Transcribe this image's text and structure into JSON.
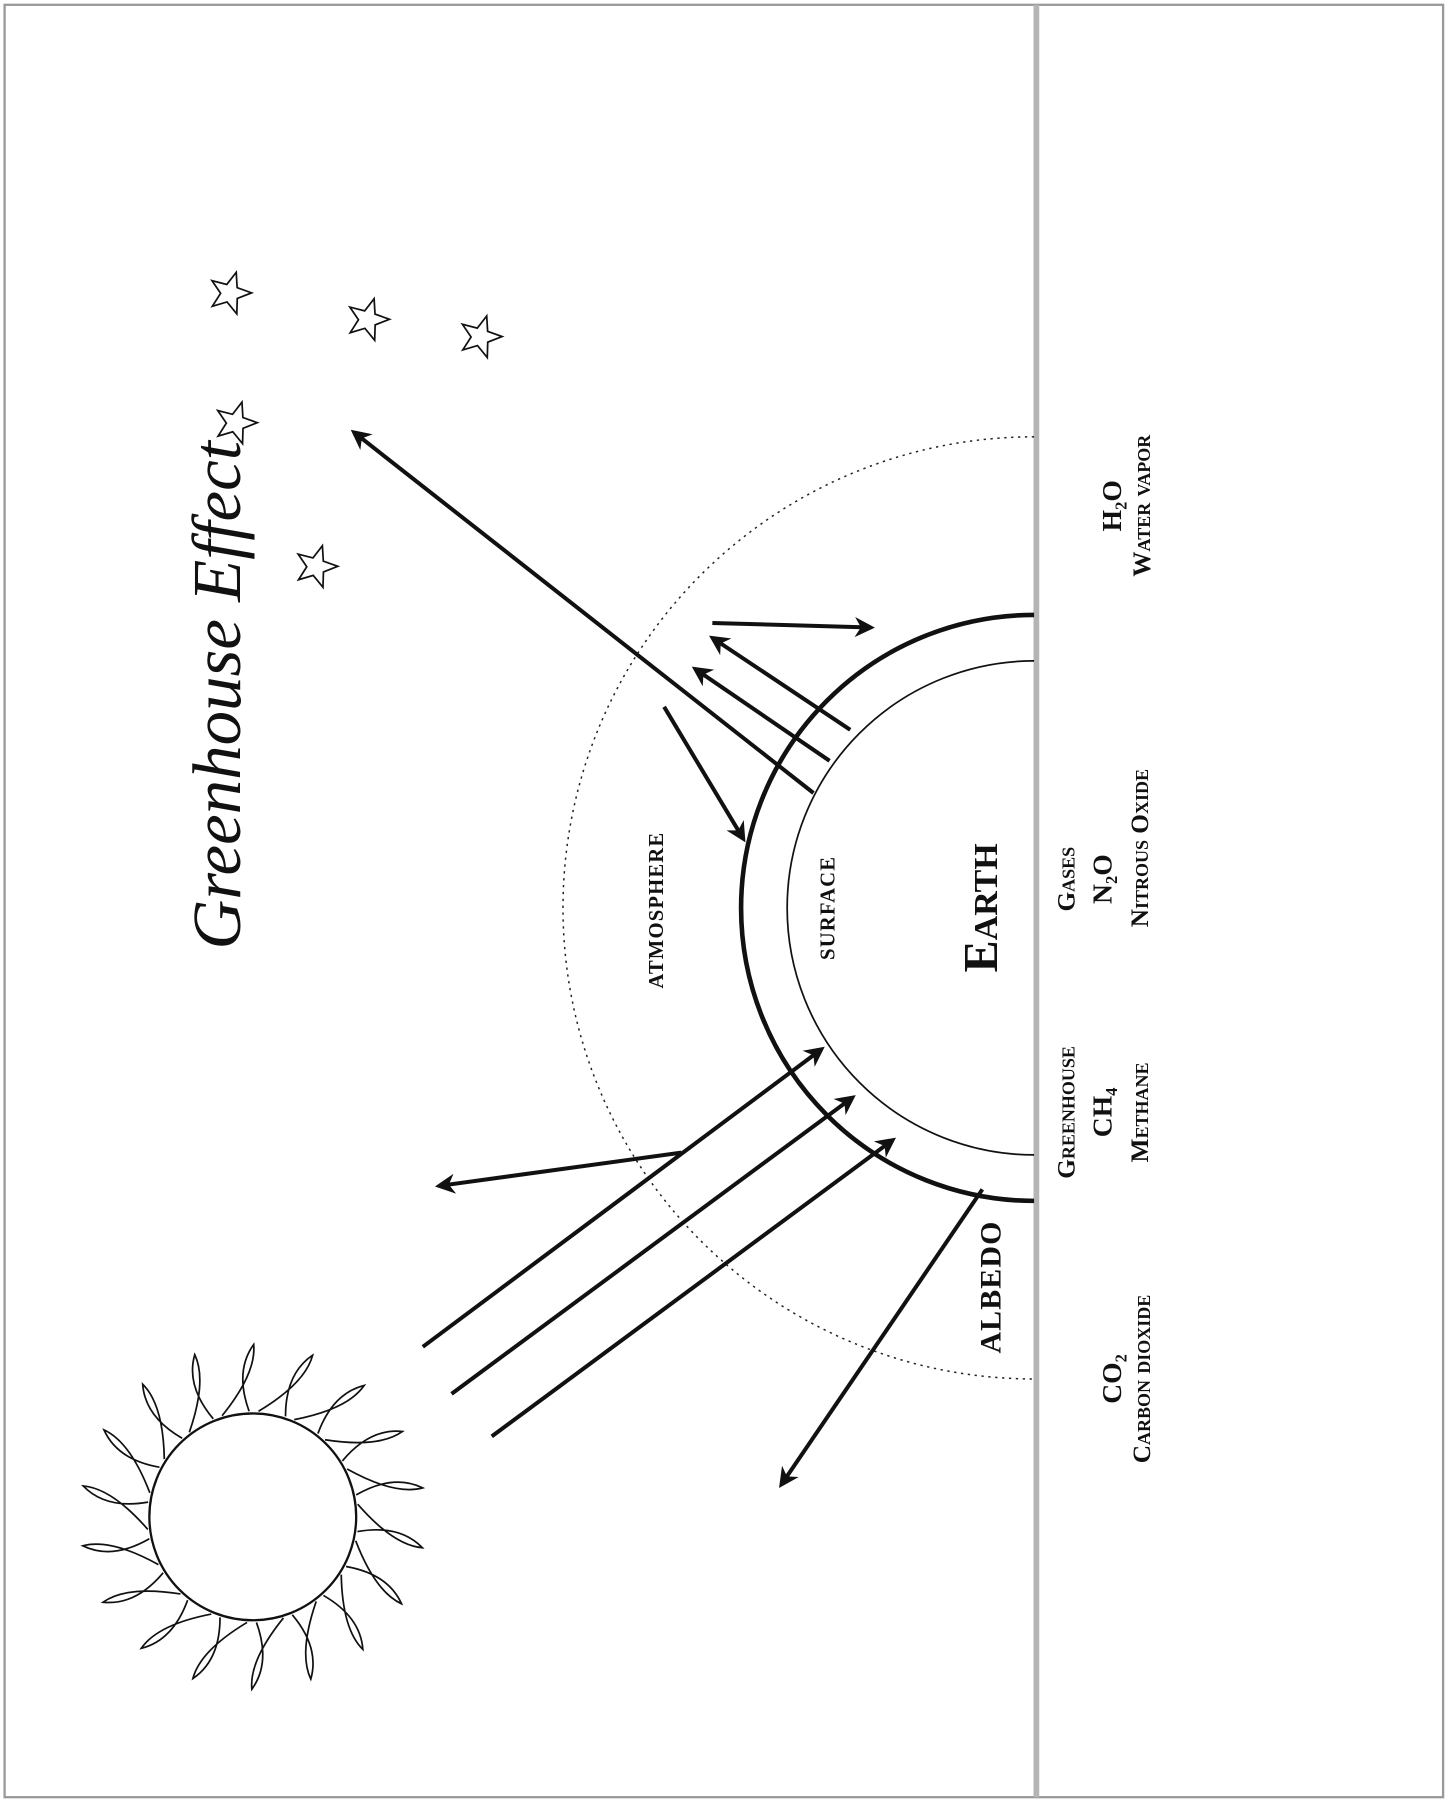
{
  "title": "Greenhouse Effect",
  "labels": {
    "atmosphere": "ATMOSPHERE",
    "surface": "SURFACE",
    "earth": "Earth",
    "albedo": "ALBEDO"
  },
  "gases": [
    {
      "formula": "CO₂",
      "name": "Carbon dioxide"
    },
    {
      "header": "Greenhouse",
      "formula": "CH₄",
      "name": "Methane"
    },
    {
      "header": "Gases",
      "formula": "N₂O",
      "name": "Nitrous Oxide"
    },
    {
      "formula": "H₂O",
      "name": "Water vapor"
    }
  ]
}
